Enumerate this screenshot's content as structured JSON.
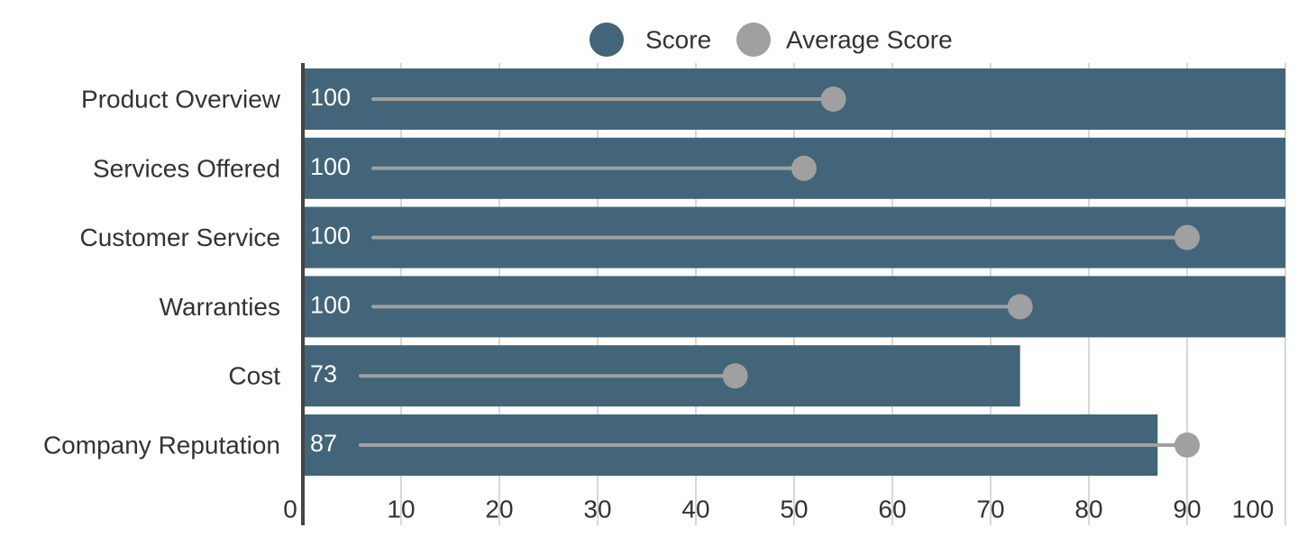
{
  "chart_data": {
    "type": "bar",
    "orientation": "horizontal",
    "categories": [
      "Product Overview",
      "Services Offered",
      "Customer Service",
      "Warranties",
      "Cost",
      "Company Reputation"
    ],
    "series": [
      {
        "name": "Score",
        "values": [
          100,
          100,
          100,
          100,
          73,
          87
        ],
        "color": "#426579",
        "mark": "bar"
      },
      {
        "name": "Average Score",
        "values": [
          54,
          51,
          90,
          73,
          44,
          90
        ],
        "color": "#a0a0a0",
        "mark": "lollipop"
      }
    ],
    "xlim": [
      0,
      100
    ],
    "xticks": [
      0,
      10,
      20,
      30,
      40,
      50,
      60,
      70,
      80,
      90,
      100
    ],
    "grid": true,
    "legend_position": "top"
  }
}
